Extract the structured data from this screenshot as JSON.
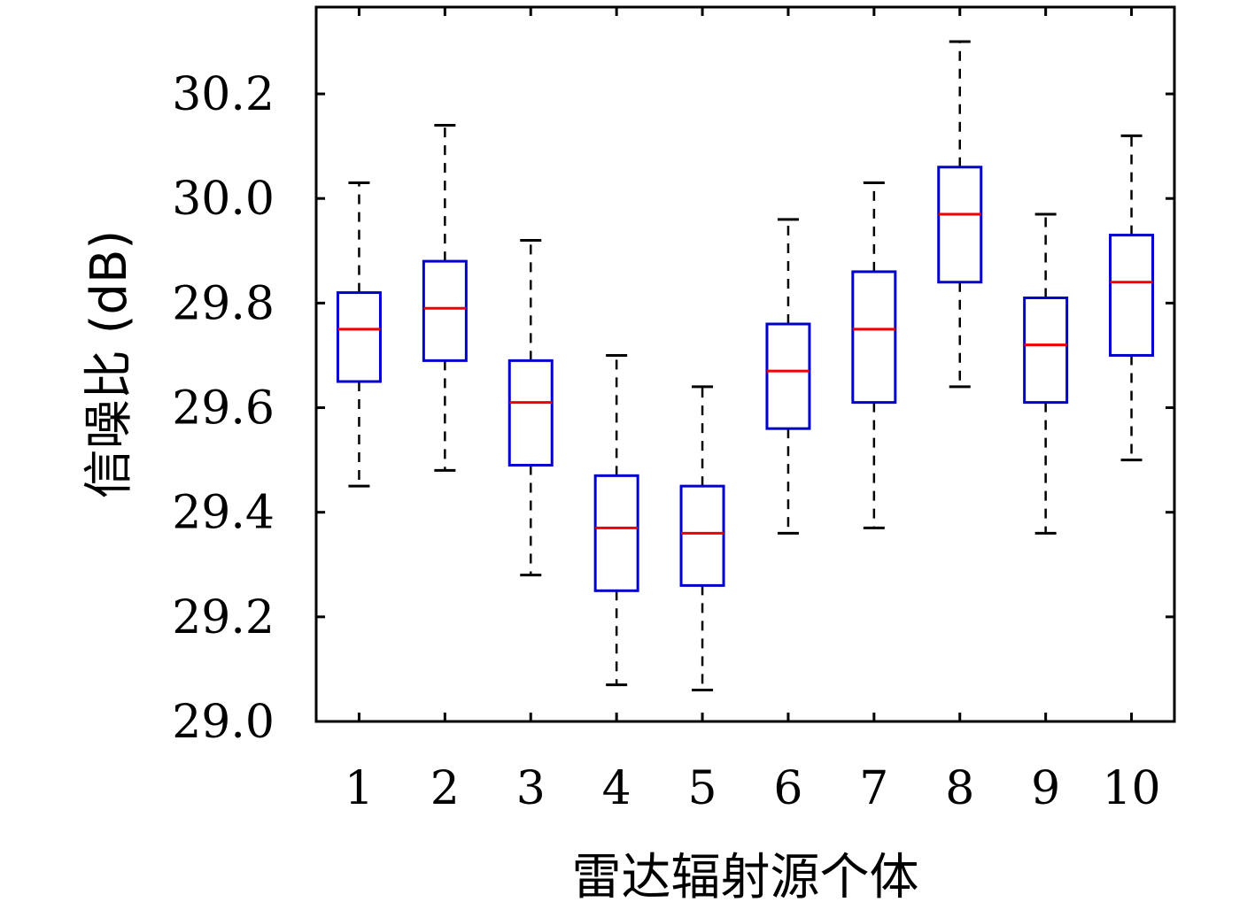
{
  "chart_data": {
    "type": "box",
    "xlabel": "雷达辐射源个体",
    "ylabel": "信噪比 (dB)",
    "ylim": [
      29.0,
      30.366
    ],
    "yticks": [
      "29.0",
      "29.2",
      "29.4",
      "29.6",
      "29.8",
      "30.0",
      "30.2"
    ],
    "categories": [
      "1",
      "2",
      "3",
      "4",
      "5",
      "6",
      "7",
      "8",
      "9",
      "10"
    ],
    "boxes": [
      {
        "whisker_low": 29.45,
        "q1": 29.65,
        "median": 29.75,
        "q3": 29.82,
        "whisker_high": 30.03
      },
      {
        "whisker_low": 29.48,
        "q1": 29.69,
        "median": 29.79,
        "q3": 29.88,
        "whisker_high": 30.14
      },
      {
        "whisker_low": 29.28,
        "q1": 29.49,
        "median": 29.61,
        "q3": 29.69,
        "whisker_high": 29.92
      },
      {
        "whisker_low": 29.07,
        "q1": 29.25,
        "median": 29.37,
        "q3": 29.47,
        "whisker_high": 29.7
      },
      {
        "whisker_low": 29.06,
        "q1": 29.26,
        "median": 29.36,
        "q3": 29.45,
        "whisker_high": 29.64
      },
      {
        "whisker_low": 29.36,
        "q1": 29.56,
        "median": 29.67,
        "q3": 29.76,
        "whisker_high": 29.96
      },
      {
        "whisker_low": 29.37,
        "q1": 29.61,
        "median": 29.75,
        "q3": 29.86,
        "whisker_high": 30.03
      },
      {
        "whisker_low": 29.64,
        "q1": 29.84,
        "median": 29.97,
        "q3": 30.06,
        "whisker_high": 30.3
      },
      {
        "whisker_low": 29.36,
        "q1": 29.61,
        "median": 29.72,
        "q3": 29.81,
        "whisker_high": 29.97
      },
      {
        "whisker_low": 29.5,
        "q1": 29.7,
        "median": 29.84,
        "q3": 29.93,
        "whisker_high": 30.12
      }
    ],
    "colors": {
      "box": "#0000cc",
      "median": "#ee0000",
      "whisker": "#000000"
    },
    "grid": false
  }
}
